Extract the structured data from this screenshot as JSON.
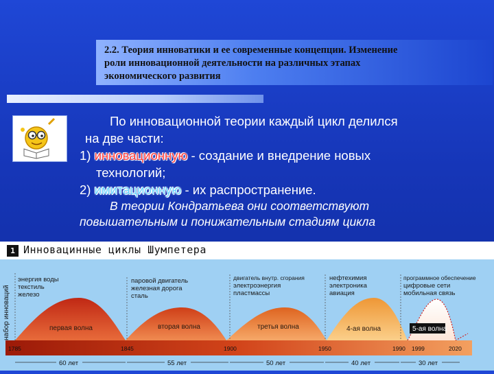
{
  "title": {
    "line1": "2.2. Теория инноватики и ее современные концепции. Изменение",
    "line2": "роли инновационной деятельности на различных этапах",
    "line3": "экономического развития"
  },
  "body": {
    "p1a": "По инновационной теории каждый цикл делился",
    "p1b": "на две части:",
    "item1_num": "1)",
    "item1_emph": "инновационную",
    "item1_rest": " - создание и внедрение новых",
    "item1_cont": "технологий;",
    "item2_num": "2)",
    "item2_emph": "имитационную",
    "item2_rest": " - их распространение.",
    "italic1": "В теории Кондратьева они соответствуют",
    "italic2": "повышательным и понижательным стадиям цикла"
  },
  "chart_header": {
    "icon_text": "1",
    "title": "Инновацинные циклы Шумпетера"
  },
  "chart_data": {
    "type": "area",
    "title": "Инновацинные циклы Шумпетера",
    "ylabel": "набор инноваций",
    "years": [
      "1785",
      "1845",
      "1900",
      "1950",
      "1990",
      "1999",
      "2020"
    ],
    "durations": [
      "60 лет",
      "55 лет",
      "50 лет",
      "40 лет",
      "30 лет"
    ],
    "waves": [
      {
        "name": "первая волна",
        "innovations": [
          "энергия воды",
          "текстиль",
          "железо"
        ]
      },
      {
        "name": "вторая волна",
        "innovations": [
          "паровой двигатель",
          "железная дорога",
          "сталь"
        ]
      },
      {
        "name": "третья волна",
        "innovations": [
          "двигатель внутр. сгорания",
          "электроэнергия",
          "пластмассы"
        ]
      },
      {
        "name": "4-ая волна",
        "innovations": [
          "нефтехимия",
          "электроника",
          "авиация"
        ]
      },
      {
        "name": "5-ая волна",
        "innovations": [
          "программное обеспечение",
          "цифровые сети",
          "мобильная связь"
        ]
      }
    ],
    "colors": {
      "wave1": "#b81e10",
      "wave2": "#d0421a",
      "wave3": "#e06a22",
      "wave4": "#f09a38",
      "wave5": "#ffffff",
      "sky": "#9fd0f3",
      "axis": "#c23a12"
    }
  }
}
